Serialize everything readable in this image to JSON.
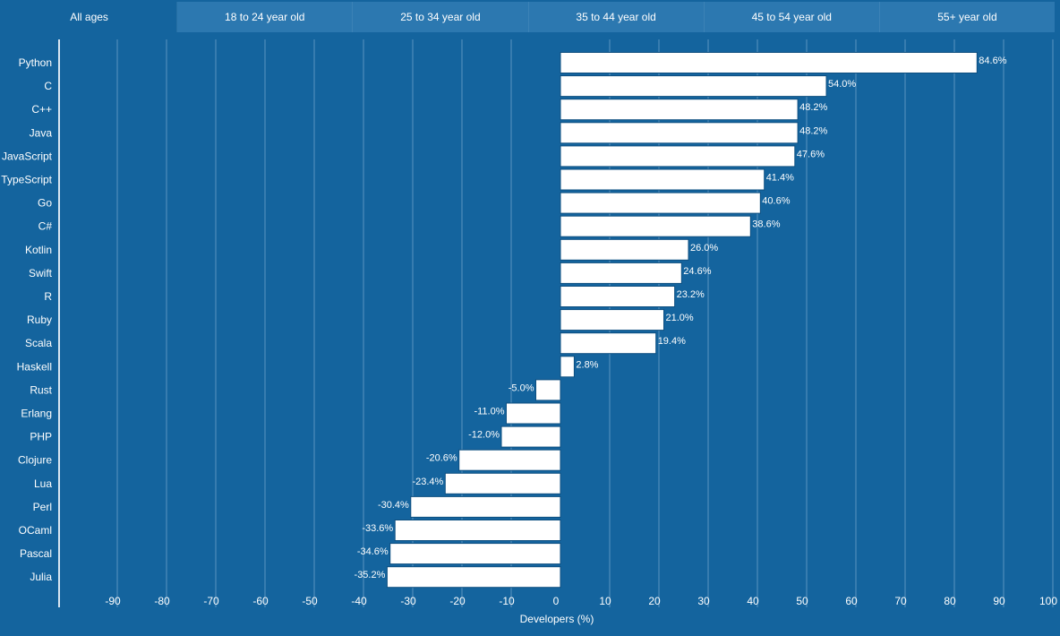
{
  "tabs": [
    {
      "label": "All ages",
      "active": true
    },
    {
      "label": "18 to 24 year old",
      "active": false
    },
    {
      "label": "25 to 34 year old",
      "active": false
    },
    {
      "label": "35 to 44 year old",
      "active": false
    },
    {
      "label": "45 to 54 year old",
      "active": false
    },
    {
      "label": "55+ year old",
      "active": false
    }
  ],
  "colors": {
    "background": "#14649e",
    "tab_bar": "#2c78b0",
    "bar": "#ffffff",
    "grid": "#5a94c0",
    "text": "#ffffff"
  },
  "chart_data": {
    "type": "bar",
    "orientation": "horizontal",
    "title": "",
    "xlabel": "Developers (%)",
    "ylabel": "",
    "xlim": [
      -100,
      100
    ],
    "xticks": [
      -90,
      -80,
      -70,
      -60,
      -50,
      -40,
      -30,
      -20,
      -10,
      0,
      10,
      20,
      30,
      40,
      50,
      60,
      70,
      80,
      90,
      100
    ],
    "grid": true,
    "categories": [
      "Python",
      "C",
      "C++",
      "Java",
      "JavaScript",
      "TypeScript",
      "Go",
      "C#",
      "Kotlin",
      "Swift",
      "R",
      "Ruby",
      "Scala",
      "Haskell",
      "Rust",
      "Erlang",
      "PHP",
      "Clojure",
      "Lua",
      "Perl",
      "OCaml",
      "Pascal",
      "Julia"
    ],
    "values": [
      84.6,
      54.0,
      48.2,
      48.2,
      47.6,
      41.4,
      40.6,
      38.6,
      26.0,
      24.6,
      23.2,
      21.0,
      19.4,
      2.8,
      -5.0,
      -11.0,
      -12.0,
      -20.6,
      -23.4,
      -30.4,
      -33.6,
      -34.6,
      -35.2
    ],
    "labels": [
      "84.6%",
      "54.0%",
      "48.2%",
      "48.2%",
      "47.6%",
      "41.4%",
      "40.6%",
      "38.6%",
      "26.0%",
      "24.6%",
      "23.2%",
      "21.0%",
      "19.4%",
      "2.8%",
      "-5.0%",
      "-11.0%",
      "-12.0%",
      "-20.6%",
      "-23.4%",
      "-30.4%",
      "-33.6%",
      "-34.6%",
      "-35.2%"
    ]
  }
}
